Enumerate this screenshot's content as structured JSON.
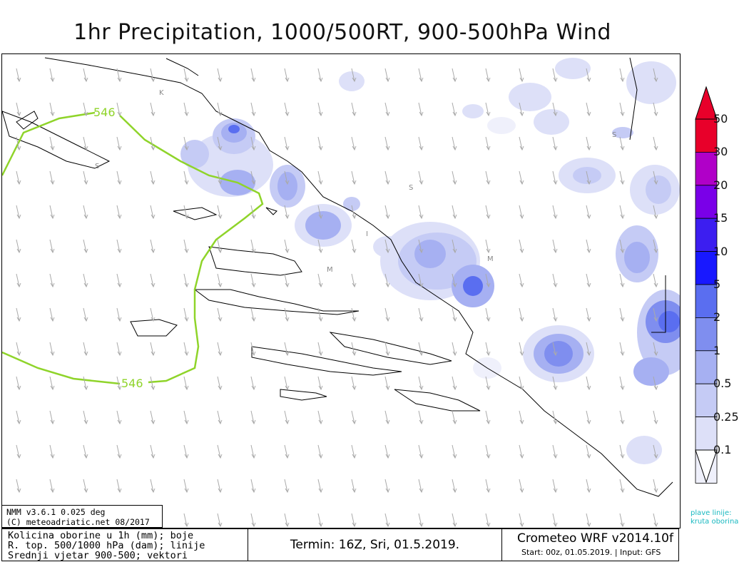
{
  "header": {
    "title": "1hr Precipitation, 1000/500RT, 900-500hPa Wind"
  },
  "map": {
    "contour_label": "546",
    "place_markers": [
      "K",
      "S",
      "S",
      "S",
      "M",
      "M",
      "I"
    ],
    "contour_color": "#8fd42a"
  },
  "colorbar": {
    "levels": [
      "50",
      "30",
      "20",
      "15",
      "10",
      "5",
      "2",
      "1",
      "0.5",
      "0.25",
      "0.1"
    ],
    "colors": {
      "50": "#e8002a",
      "30": "#b000c8",
      "20": "#7a00e8",
      "15": "#3c1ef0",
      "10": "#1818ff",
      "5": "#5a6ef0",
      "2": "#7f8eef",
      "1": "#a6b0f2",
      "0.5": "#c5cbf5",
      "0.25": "#dde0f8",
      "0.1": "#eff0fb"
    },
    "note": [
      "plave linije:",
      "kruta oborina"
    ]
  },
  "model_info": {
    "line1": "NMM v3.6.1 0.025 deg",
    "line2": "(C) meteoadriatic.net 08/2017"
  },
  "footer": {
    "legend": [
      "Kolicina oborine u 1h (mm); boje",
      "R. top. 500/1000 hPa (dam); linije",
      "Srednji vjetar 900-500; vektori"
    ],
    "termin": "Termin: 16Z, Sri, 01.5.2019.",
    "brand": "Crometeo WRF v2014.10f",
    "run_info": "Start: 00z, 01.05.2019. | Input: GFS"
  }
}
